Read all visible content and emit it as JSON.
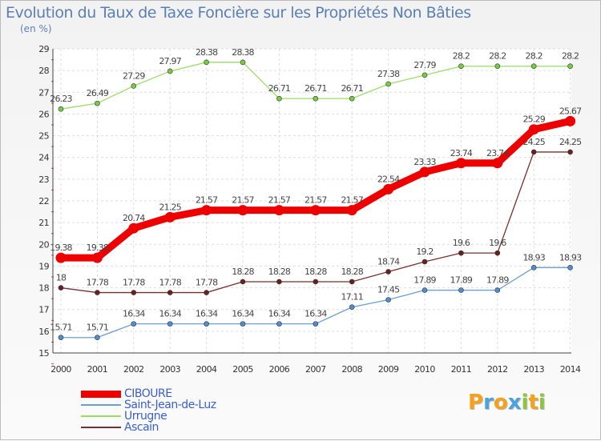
{
  "header": {
    "title": "Evolution du Taux de Taxe Foncière sur les Propriétés Non Bâties",
    "unit": "(en %)"
  },
  "logo": {
    "letters": [
      "P",
      "r",
      "o",
      "x",
      "i",
      "t",
      "i"
    ],
    "colors": [
      "#f5a11c",
      "#4aa3df",
      "#f5a11c",
      "#4aa3df",
      "#8cc63f",
      "#f5a11c",
      "#8cc63f"
    ]
  },
  "chart_data": {
    "type": "line",
    "title": "Evolution du Taux de Taxe Foncière sur les Propriétés Non Bâties",
    "ylabel": "(en %)",
    "xlabel": "",
    "ylim": [
      15,
      29
    ],
    "yticks": [
      "15",
      "16",
      "17",
      "18",
      "19",
      "20",
      "21",
      "22",
      "23",
      "24",
      "25",
      "26",
      "27",
      "28",
      "29"
    ],
    "categories": [
      "2000",
      "2001",
      "2002",
      "2003",
      "2004",
      "2005",
      "2006",
      "2007",
      "2008",
      "2009",
      "2010",
      "2011",
      "2012",
      "2013",
      "2014"
    ],
    "series": [
      {
        "name": "CIBOURE",
        "color": "#ee0000",
        "emphasis": true,
        "values": [
          19.38,
          19.38,
          20.74,
          21.25,
          21.57,
          21.57,
          21.57,
          21.57,
          21.57,
          22.54,
          23.33,
          23.74,
          23.74,
          25.29,
          25.67
        ],
        "labels": [
          "19.38",
          "19.38",
          "20.74",
          "21.25",
          "21.57",
          "21.57",
          "21.57",
          "21.57",
          "21.57",
          "22.54",
          "23.33",
          "23.74",
          "23.74",
          "25.29",
          "25.67"
        ]
      },
      {
        "name": "Saint-Jean-de-Luz",
        "color": "#6b9fd4",
        "marker": "#4f8fd1",
        "values": [
          15.71,
          15.71,
          16.34,
          16.34,
          16.34,
          16.34,
          16.34,
          16.34,
          17.11,
          17.45,
          17.89,
          17.89,
          17.89,
          18.93,
          18.93
        ],
        "labels": [
          "15.71",
          "15.71",
          "16.34",
          "16.34",
          "16.34",
          "16.34",
          "16.34",
          "16.34",
          "17.11",
          "17.45",
          "17.89",
          "17.89",
          "17.89",
          "18.93",
          "18.93"
        ]
      },
      {
        "name": "Urrugne",
        "color": "#99dd66",
        "marker": "#77cc44",
        "values": [
          26.23,
          26.49,
          27.29,
          27.97,
          28.38,
          28.38,
          26.71,
          26.71,
          26.71,
          27.38,
          27.79,
          28.2,
          28.2,
          28.2,
          28.2
        ],
        "labels": [
          "26.23",
          "26.49",
          "27.29",
          "27.97",
          "28.38",
          "28.38",
          "26.71",
          "26.71",
          "26.71",
          "27.38",
          "27.79",
          "28.2",
          "28.2",
          "28.2",
          "28.2"
        ]
      },
      {
        "name": "Ascain",
        "color": "#7a2f2f",
        "marker": "#6b1f1f",
        "values": [
          18,
          17.78,
          17.78,
          17.78,
          17.78,
          18.28,
          18.28,
          18.28,
          18.28,
          18.74,
          19.2,
          19.6,
          19.6,
          24.25,
          24.25
        ],
        "labels": [
          "18",
          "17.78",
          "17.78",
          "17.78",
          "17.78",
          "18.28",
          "18.28",
          "18.28",
          "18.28",
          "18.74",
          "19.2",
          "19.6",
          "19.6",
          "24.25",
          "24.25"
        ]
      }
    ],
    "legend": {
      "position": "bottom-left"
    },
    "grid": true
  }
}
